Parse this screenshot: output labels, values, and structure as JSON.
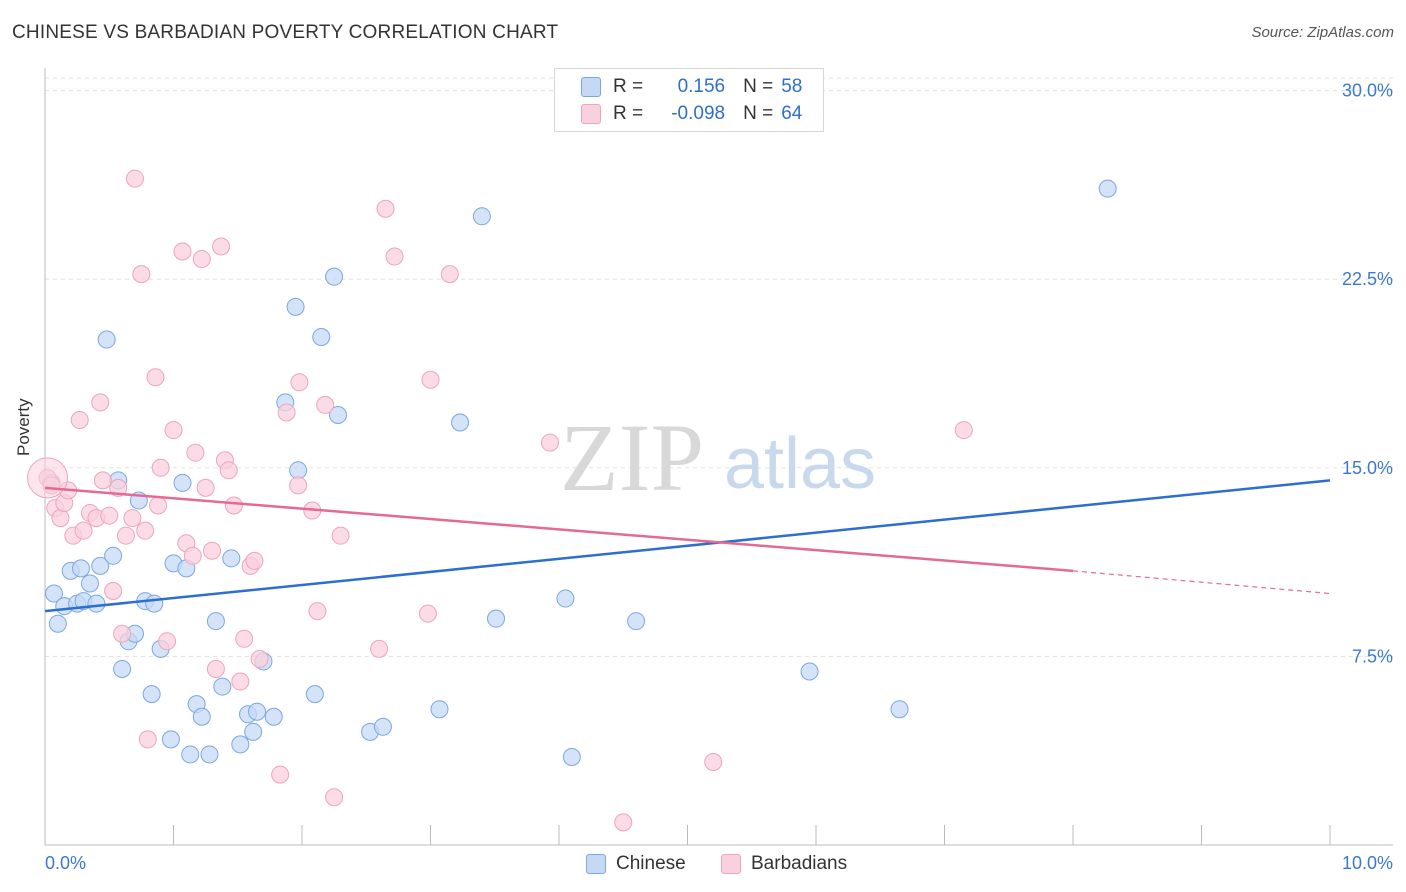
{
  "title": "CHINESE VS BARBADIAN POVERTY CORRELATION CHART",
  "source": "Source: ZipAtlas.com",
  "watermark": {
    "zip": "ZIP",
    "atlas": "atlas"
  },
  "legend": {
    "rows": [
      {
        "r_label": "R =",
        "r_value": "0.156",
        "n_label": "N =",
        "n_value": "58"
      },
      {
        "r_label": "R =",
        "r_value": "-0.098",
        "n_label": "N =",
        "n_value": "64"
      }
    ]
  },
  "colors": {
    "chinese_fill": "#c5d9f5",
    "chinese_stroke": "#7aa7e3",
    "chinese_line": "#2c6fcf",
    "barbadian_fill": "#f9d0dd",
    "barbadian_stroke": "#eea4bb",
    "barbadian_line": "#e46a95",
    "tick_label": "#3b78d0",
    "grid": "#e0e0e0"
  },
  "chart_data": {
    "type": "scatter",
    "title": "CHINESE VS BARBADIAN POVERTY CORRELATION CHART",
    "xlabel": "",
    "ylabel": "Poverty",
    "xlim": [
      0,
      10
    ],
    "ylim": [
      0,
      30.5
    ],
    "x_tick_labels": [
      "0.0%",
      "10.0%"
    ],
    "y_ticks": [
      7.5,
      15.0,
      22.5,
      30.0
    ],
    "y_tick_labels": [
      "7.5%",
      "15.0%",
      "22.5%",
      "30.0%"
    ],
    "grid": true,
    "legend_position": "bottom",
    "series": [
      {
        "name": "Chinese",
        "trend": {
          "x": [
            0,
            10
          ],
          "y": [
            9.3,
            14.5
          ],
          "extrapolate_from": null
        },
        "points": [
          [
            0.05,
            14.4
          ],
          [
            0.07,
            10.0
          ],
          [
            0.1,
            8.8
          ],
          [
            0.15,
            9.5
          ],
          [
            0.2,
            10.9
          ],
          [
            0.25,
            9.6
          ],
          [
            0.28,
            11.0
          ],
          [
            0.3,
            9.7
          ],
          [
            0.35,
            10.4
          ],
          [
            0.4,
            9.6
          ],
          [
            0.43,
            11.1
          ],
          [
            0.48,
            20.1
          ],
          [
            0.53,
            11.5
          ],
          [
            0.57,
            14.5
          ],
          [
            0.6,
            7.0
          ],
          [
            0.65,
            8.1
          ],
          [
            0.7,
            8.4
          ],
          [
            0.73,
            13.7
          ],
          [
            0.78,
            9.7
          ],
          [
            0.83,
            6.0
          ],
          [
            0.85,
            9.6
          ],
          [
            0.9,
            7.8
          ],
          [
            0.98,
            4.2
          ],
          [
            1.0,
            11.2
          ],
          [
            1.07,
            14.4
          ],
          [
            1.1,
            11.0
          ],
          [
            1.13,
            3.6
          ],
          [
            1.18,
            5.6
          ],
          [
            1.22,
            5.1
          ],
          [
            1.28,
            3.6
          ],
          [
            1.33,
            8.9
          ],
          [
            1.38,
            6.3
          ],
          [
            1.45,
            11.4
          ],
          [
            1.52,
            4.0
          ],
          [
            1.58,
            5.2
          ],
          [
            1.62,
            4.5
          ],
          [
            1.65,
            5.3
          ],
          [
            1.7,
            7.3
          ],
          [
            1.78,
            5.1
          ],
          [
            1.87,
            17.6
          ],
          [
            1.95,
            21.4
          ],
          [
            1.97,
            14.9
          ],
          [
            2.1,
            6.0
          ],
          [
            2.15,
            20.2
          ],
          [
            2.25,
            22.6
          ],
          [
            2.28,
            17.1
          ],
          [
            2.53,
            4.5
          ],
          [
            2.63,
            4.7
          ],
          [
            3.07,
            5.4
          ],
          [
            3.23,
            16.8
          ],
          [
            3.4,
            25.0
          ],
          [
            3.51,
            9.0
          ],
          [
            4.05,
            9.8
          ],
          [
            4.1,
            3.5
          ],
          [
            4.6,
            8.9
          ],
          [
            5.95,
            6.9
          ],
          [
            6.65,
            5.4
          ],
          [
            8.27,
            26.1
          ]
        ]
      },
      {
        "name": "Barbadians",
        "trend": {
          "x": [
            0,
            8.0
          ],
          "y": [
            14.2,
            10.9
          ],
          "extrapolate_to": [
            10,
            10.0
          ]
        },
        "points": [
          [
            0.02,
            14.6
          ],
          [
            0.05,
            14.3
          ],
          [
            0.08,
            13.4
          ],
          [
            0.12,
            13.0
          ],
          [
            0.15,
            13.6
          ],
          [
            0.18,
            14.1
          ],
          [
            0.22,
            12.3
          ],
          [
            0.27,
            16.9
          ],
          [
            0.3,
            12.5
          ],
          [
            0.35,
            13.2
          ],
          [
            0.4,
            13.0
          ],
          [
            0.43,
            17.6
          ],
          [
            0.45,
            14.5
          ],
          [
            0.5,
            13.1
          ],
          [
            0.53,
            10.1
          ],
          [
            0.57,
            14.2
          ],
          [
            0.6,
            8.4
          ],
          [
            0.63,
            12.3
          ],
          [
            0.68,
            13.0
          ],
          [
            0.7,
            26.5
          ],
          [
            0.75,
            22.7
          ],
          [
            0.78,
            12.5
          ],
          [
            0.8,
            4.2
          ],
          [
            0.86,
            18.6
          ],
          [
            0.88,
            13.5
          ],
          [
            0.9,
            15.0
          ],
          [
            0.95,
            8.1
          ],
          [
            1.0,
            16.5
          ],
          [
            1.07,
            23.6
          ],
          [
            1.1,
            12.0
          ],
          [
            1.15,
            11.5
          ],
          [
            1.17,
            15.6
          ],
          [
            1.22,
            23.3
          ],
          [
            1.25,
            14.2
          ],
          [
            1.3,
            11.7
          ],
          [
            1.33,
            7.0
          ],
          [
            1.37,
            23.8
          ],
          [
            1.4,
            15.3
          ],
          [
            1.43,
            14.9
          ],
          [
            1.47,
            13.5
          ],
          [
            1.52,
            6.5
          ],
          [
            1.55,
            8.2
          ],
          [
            1.6,
            11.1
          ],
          [
            1.63,
            11.3
          ],
          [
            1.67,
            7.4
          ],
          [
            1.83,
            2.8
          ],
          [
            1.88,
            17.2
          ],
          [
            1.97,
            14.3
          ],
          [
            1.98,
            18.4
          ],
          [
            2.08,
            13.3
          ],
          [
            2.12,
            9.3
          ],
          [
            2.18,
            17.5
          ],
          [
            2.25,
            1.9
          ],
          [
            2.3,
            12.3
          ],
          [
            2.6,
            7.8
          ],
          [
            2.65,
            25.3
          ],
          [
            2.72,
            23.4
          ],
          [
            2.98,
            9.2
          ],
          [
            3.0,
            18.5
          ],
          [
            3.15,
            22.7
          ],
          [
            3.93,
            16.0
          ],
          [
            4.5,
            0.9
          ],
          [
            5.2,
            3.3
          ],
          [
            7.15,
            16.5
          ]
        ]
      }
    ]
  },
  "bottom_legend": [
    "Chinese",
    "Barbadians"
  ]
}
